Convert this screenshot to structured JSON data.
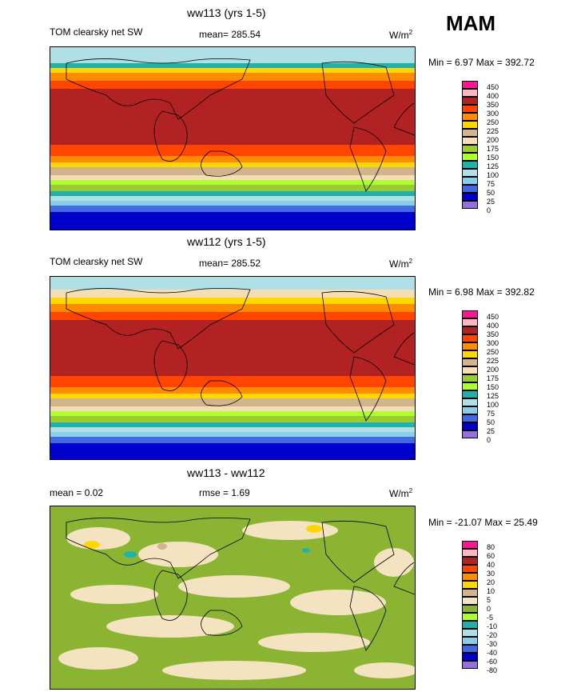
{
  "season": "MAM",
  "panels": [
    {
      "title": "ww113 (yrs 1-5)",
      "left_label": "TOM clearsky net SW",
      "mean_label": "mean= 285.54",
      "units": "W/m",
      "units_sup": "2",
      "minmax": "Min =   6.97 Max = 392.72",
      "levels": [
        "450",
        "400",
        "350",
        "300",
        "250",
        "225",
        "200",
        "175",
        "150",
        "125",
        "100",
        "75",
        "50",
        "25",
        "0"
      ]
    },
    {
      "title": "ww112 (yrs 1-5)",
      "left_label": "TOM clearsky net SW",
      "mean_label": "mean= 285.52",
      "units": "W/m",
      "units_sup": "2",
      "minmax": "Min =   6.98 Max = 392.82",
      "levels": [
        "450",
        "400",
        "350",
        "300",
        "250",
        "225",
        "200",
        "175",
        "150",
        "125",
        "100",
        "75",
        "50",
        "25",
        "0"
      ]
    },
    {
      "title": "ww113 - ww112",
      "left_label": "mean =   0.02",
      "mean_label": "rmse =   1.69",
      "units": "W/m",
      "units_sup": "2",
      "minmax": "Min = -21.07 Max =  25.49",
      "levels": [
        "80",
        "60",
        "40",
        "30",
        "20",
        "10",
        "5",
        "0",
        "-5",
        "-10",
        "-20",
        "-30",
        "-40",
        "-60",
        "-80"
      ]
    }
  ],
  "colors": {
    "palette": [
      "#ff1493",
      "#ffb6c1",
      "#b22222",
      "#ff4500",
      "#ff8c00",
      "#ffd700",
      "#d2b48c",
      "#f5deb3",
      "#9acd32",
      "#adff2f",
      "#20b2aa",
      "#b0e0e6",
      "#87ceeb",
      "#4169e1",
      "#0000cd",
      "#9370db"
    ],
    "ocean_ice": "#b0e0e6",
    "diff_green": "#8ab432",
    "diff_tan": "#f3e3c0"
  }
}
